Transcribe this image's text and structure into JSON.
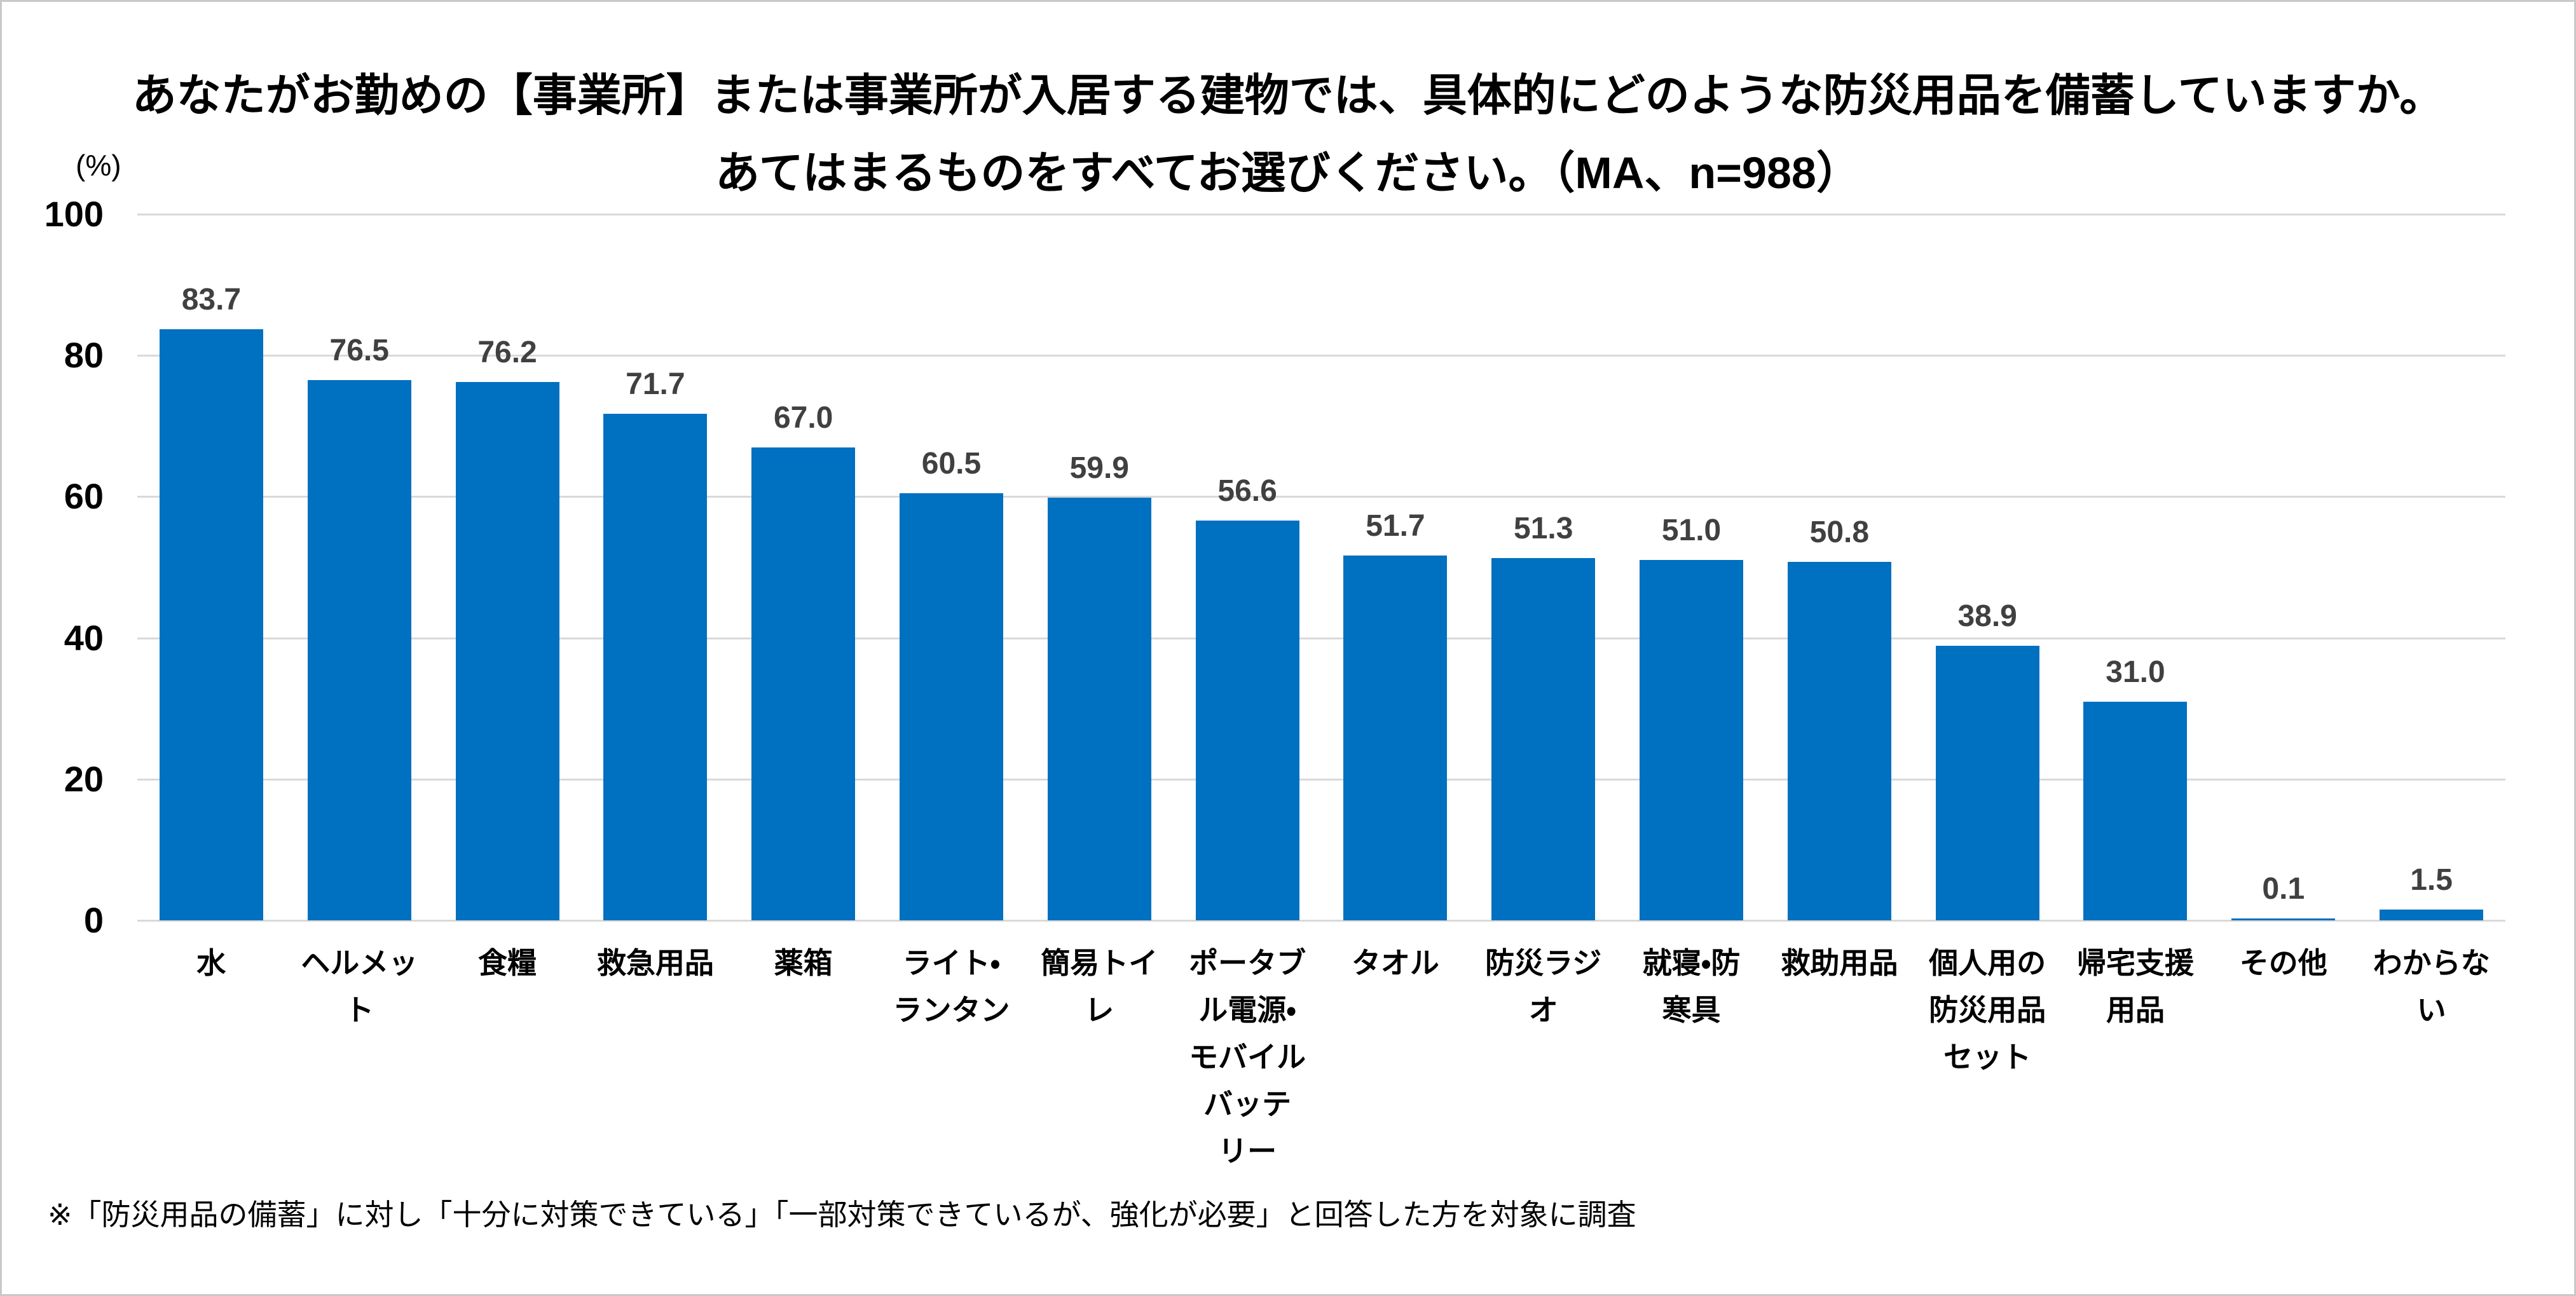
{
  "figure": {
    "title_line1": "あなたがお勤めの【事業所】または事業所が入居する建物では、具体的にどのような防災用品を備蓄していますか。",
    "title_line2": "あてはまるものをすべてお選びください。（MA、n=988）",
    "unit_label": "(%)",
    "footnote": "※「防災用品の備蓄」に対し「十分に対策できている」「一部対策できているが、強化が必要」と回答した方を対象に調査"
  },
  "chart_data": {
    "type": "bar",
    "title": "あなたがお勤めの【事業所】または事業所が入居する建物では、具体的にどのような防災用品を備蓄していますか。あてはまるものをすべてお選びください。（MA、n=988）",
    "unit": "%",
    "sample_note": "MA、n=988",
    "categories": [
      "水",
      "ヘルメット",
      "食糧",
      "救急用品",
      "薬箱",
      "ライト・ランタン",
      "簡易トイレ",
      "ポータブル電源・モバイルバッテリー",
      "タオル",
      "防災ラジオ",
      "就寝・防寒具",
      "救助用品",
      "個人用の防災用品セット",
      "帰宅支援用品",
      "その他",
      "わからない"
    ],
    "category_display": [
      "水",
      "ヘルメッ\nト",
      "食糧",
      "救急用品",
      "薬箱",
      "ライト・\nランタン",
      "簡易トイ\nレ",
      "ポータブ\nル電源・\nモバイル\nバッテ\nリー",
      "タオル",
      "防災ラジ\nオ",
      "就寝・防\n寒具",
      "救助用品",
      "個人用の\n防災用品\nセット",
      "帰宅支援\n用品",
      "その他",
      "わからな\nい"
    ],
    "values": [
      83.7,
      76.5,
      76.2,
      71.7,
      67.0,
      60.5,
      59.9,
      56.6,
      51.7,
      51.3,
      51.0,
      50.8,
      38.9,
      31.0,
      0.1,
      1.5
    ],
    "value_labels": [
      "83.7",
      "76.5",
      "76.2",
      "71.7",
      "67.0",
      "60.5",
      "59.9",
      "56.6",
      "51.7",
      "51.3",
      "51.0",
      "50.8",
      "38.9",
      "31.0",
      "0.1",
      "1.5"
    ],
    "ylim": [
      0,
      100
    ],
    "yticks": [
      0,
      20,
      40,
      60,
      80,
      100
    ],
    "grid": true,
    "legend": "none",
    "bar_color": "#0070C0",
    "value_label_color": "#404040",
    "gridline_color": "#d9d9d9"
  }
}
